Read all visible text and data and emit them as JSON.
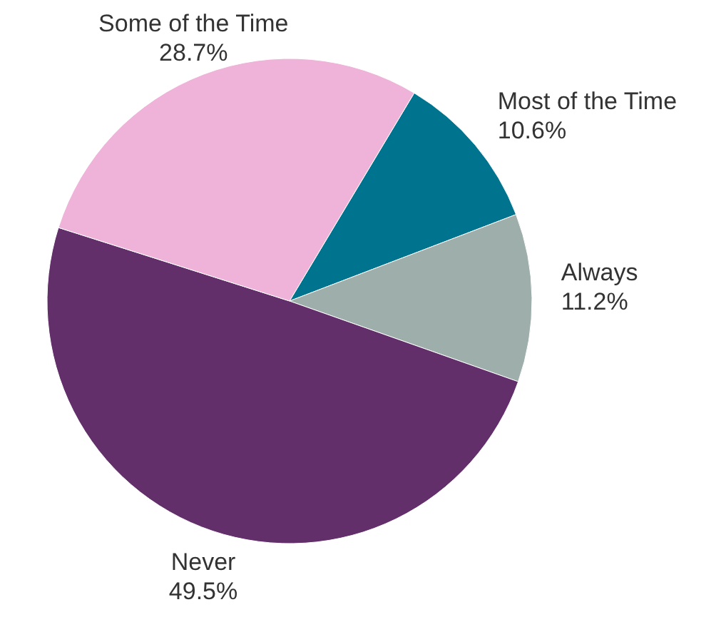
{
  "chart_data": {
    "type": "pie",
    "categories": [
      "Most of the Time",
      "Always",
      "Never",
      "Some of the Time"
    ],
    "values": [
      10.6,
      11.2,
      49.5,
      28.7
    ],
    "value_labels": [
      "10.6%",
      "11.2%",
      "49.5%",
      "28.7%"
    ],
    "colors": [
      "#00738f",
      "#9eaeab",
      "#622f6a",
      "#efb3d9"
    ],
    "legend": false
  }
}
